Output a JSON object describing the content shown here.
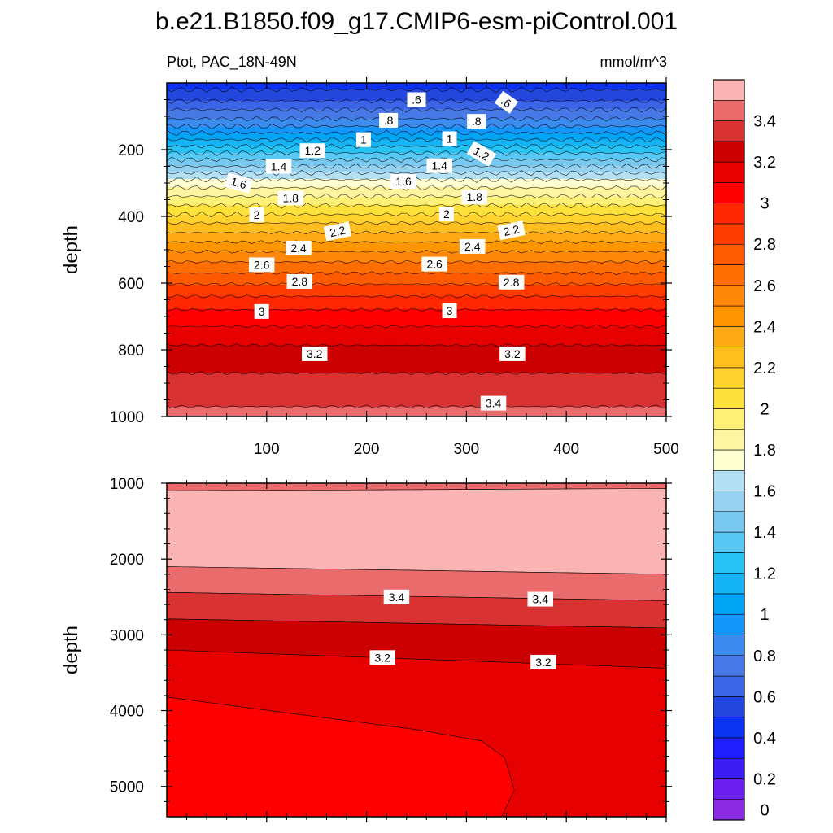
{
  "figure": {
    "title": "b.e21.B1850.f09_g17.CMIP6-esm-piControl.001",
    "subtitle_left": "Ptot, PAC_18N-49N",
    "subtitle_right": "mmol/m^3"
  },
  "colorbar": {
    "levels": [
      0,
      0.1,
      0.2,
      0.3,
      0.4,
      0.5,
      0.6,
      0.7,
      0.8,
      0.9,
      1.0,
      1.1,
      1.2,
      1.3,
      1.4,
      1.5,
      1.6,
      1.7,
      1.8,
      1.9,
      2.0,
      2.1,
      2.2,
      2.3,
      2.4,
      2.5,
      2.6,
      2.7,
      2.8,
      2.9,
      3.0,
      3.1,
      3.2,
      3.3,
      3.4,
      3.5
    ],
    "colors": [
      "#8a2be2",
      "#6a1ef0",
      "#3c1ef5",
      "#1e1eff",
      "#0a32f0",
      "#2346dc",
      "#3c64e6",
      "#4678e6",
      "#3c8cf0",
      "#1496fa",
      "#00a5f5",
      "#14b4f5",
      "#28c3f5",
      "#5ac8f5",
      "#78c8f0",
      "#96d2f0",
      "#b4e0f5",
      "#ffffd2",
      "#fff5a0",
      "#fff078",
      "#ffe13c",
      "#ffd22d",
      "#ffbe1e",
      "#ffaa14",
      "#ff9600",
      "#ff870a",
      "#ff6e00",
      "#ff5a00",
      "#ff3c00",
      "#ff2800",
      "#ff0000",
      "#e60000",
      "#cc0000",
      "#d93232",
      "#e96b6b",
      "#fbb4b4"
    ],
    "labels": [
      "0",
      "0.2",
      "0.4",
      "0.6",
      "0.8",
      "1",
      "1.2",
      "1.4",
      "1.6",
      "1.8",
      "2",
      "2.2",
      "2.4",
      "2.6",
      "2.8",
      "3",
      "3.2",
      "3.4"
    ],
    "label_levels": [
      0,
      0.2,
      0.4,
      0.6,
      0.8,
      1.0,
      1.2,
      1.4,
      1.6,
      1.8,
      2.0,
      2.2,
      2.4,
      2.6,
      2.8,
      3.0,
      3.2,
      3.4
    ]
  },
  "chart_data": [
    {
      "type": "contour",
      "x_range": [
        0,
        500
      ],
      "y_range": [
        1000,
        0
      ],
      "y_reversed": true,
      "ylabel": "depth",
      "xlabel": "",
      "x_ticks": [
        100,
        200,
        300,
        400,
        500
      ],
      "y_ticks": [
        200,
        400,
        600,
        800,
        1000
      ],
      "profile": {
        "depth": [
          0,
          20,
          40,
          60,
          80,
          100,
          120,
          140,
          160,
          180,
          200,
          220,
          240,
          260,
          280,
          300,
          320,
          340,
          360,
          380,
          400,
          420,
          440,
          460,
          480,
          500,
          520,
          540,
          560,
          580,
          600,
          620,
          640,
          660,
          680,
          700,
          720,
          740,
          760,
          780,
          800,
          820,
          840,
          860,
          880,
          900,
          920,
          940,
          960,
          980,
          1000
        ],
        "value": [
          0.45,
          0.5,
          0.55,
          0.62,
          0.7,
          0.77,
          0.85,
          0.95,
          1.05,
          1.15,
          1.25,
          1.35,
          1.45,
          1.55,
          1.65,
          1.75,
          1.82,
          1.9,
          1.97,
          2.05,
          2.12,
          2.2,
          2.27,
          2.34,
          2.41,
          2.48,
          2.55,
          2.61,
          2.67,
          2.73,
          2.79,
          2.85,
          2.9,
          2.95,
          3.0,
          3.04,
          3.08,
          3.12,
          3.16,
          3.19,
          3.22,
          3.25,
          3.27,
          3.29,
          3.31,
          3.33,
          3.35,
          3.37,
          3.39,
          3.41,
          3.43
        ]
      },
      "contour_labels": [
        {
          "text": ".6",
          "x": 250,
          "depth": 50
        },
        {
          "text": ".6",
          "x": 340,
          "depth": 58
        },
        {
          "text": ".8",
          "x": 222,
          "depth": 112
        },
        {
          "text": ".8",
          "x": 310,
          "depth": 115
        },
        {
          "text": "1",
          "x": 197,
          "depth": 170
        },
        {
          "text": "1",
          "x": 283,
          "depth": 167
        },
        {
          "text": "1.2",
          "x": 146,
          "depth": 203
        },
        {
          "text": "1.2",
          "x": 315,
          "depth": 212
        },
        {
          "text": "1.4",
          "x": 112,
          "depth": 250
        },
        {
          "text": "1.4",
          "x": 273,
          "depth": 248
        },
        {
          "text": "1.6",
          "x": 72,
          "depth": 300
        },
        {
          "text": "1.6",
          "x": 237,
          "depth": 295
        },
        {
          "text": "1.8",
          "x": 124,
          "depth": 345
        },
        {
          "text": "1.8",
          "x": 308,
          "depth": 342
        },
        {
          "text": "2",
          "x": 90,
          "depth": 395
        },
        {
          "text": "2",
          "x": 280,
          "depth": 393
        },
        {
          "text": "2.2",
          "x": 171,
          "depth": 445
        },
        {
          "text": "2.2",
          "x": 345,
          "depth": 442
        },
        {
          "text": "2.4",
          "x": 132,
          "depth": 495
        },
        {
          "text": "2.4",
          "x": 306,
          "depth": 490
        },
        {
          "text": "2.6",
          "x": 95,
          "depth": 545
        },
        {
          "text": "2.6",
          "x": 268,
          "depth": 543
        },
        {
          "text": "2.8",
          "x": 133,
          "depth": 595
        },
        {
          "text": "2.8",
          "x": 345,
          "depth": 597
        },
        {
          "text": "3",
          "x": 95,
          "depth": 685
        },
        {
          "text": "3",
          "x": 283,
          "depth": 683
        },
        {
          "text": "3.2",
          "x": 148,
          "depth": 812
        },
        {
          "text": "3.2",
          "x": 346,
          "depth": 812
        },
        {
          "text": "3.4",
          "x": 327,
          "depth": 960
        }
      ]
    },
    {
      "type": "contour",
      "x_range": [
        0,
        500
      ],
      "y_range": [
        5400,
        1000
      ],
      "y_reversed": true,
      "ylabel": "depth",
      "xlabel": "",
      "y_ticks": [
        1000,
        2000,
        3000,
        4000,
        5000
      ],
      "region_boundaries": [
        {
          "level": 3.5,
          "depth_left": 1100,
          "depth_right": 1070
        },
        {
          "level": 3.4,
          "depth_left": 2100,
          "depth_right": 2200
        },
        {
          "level": 3.3,
          "depth_left": 2440,
          "depth_right": 2550
        },
        {
          "level": 3.2,
          "depth_left": 2790,
          "depth_right": 2910
        },
        {
          "level": 3.1,
          "depth_left": 3200,
          "depth_right": 3440
        }
      ],
      "region_3_0_boundary": [
        [
          0,
          3820
        ],
        [
          120,
          4030
        ],
        [
          250,
          4250
        ],
        [
          315,
          4400
        ],
        [
          338,
          4620
        ],
        [
          348,
          5050
        ],
        [
          335,
          5400
        ]
      ],
      "contour_labels": [
        {
          "text": "3.4",
          "x": 230,
          "depth": 2500
        },
        {
          "text": "3.4",
          "x": 374,
          "depth": 2530
        },
        {
          "text": "3.2",
          "x": 216,
          "depth": 3300
        },
        {
          "text": "3.2",
          "x": 377,
          "depth": 3360
        }
      ]
    }
  ]
}
